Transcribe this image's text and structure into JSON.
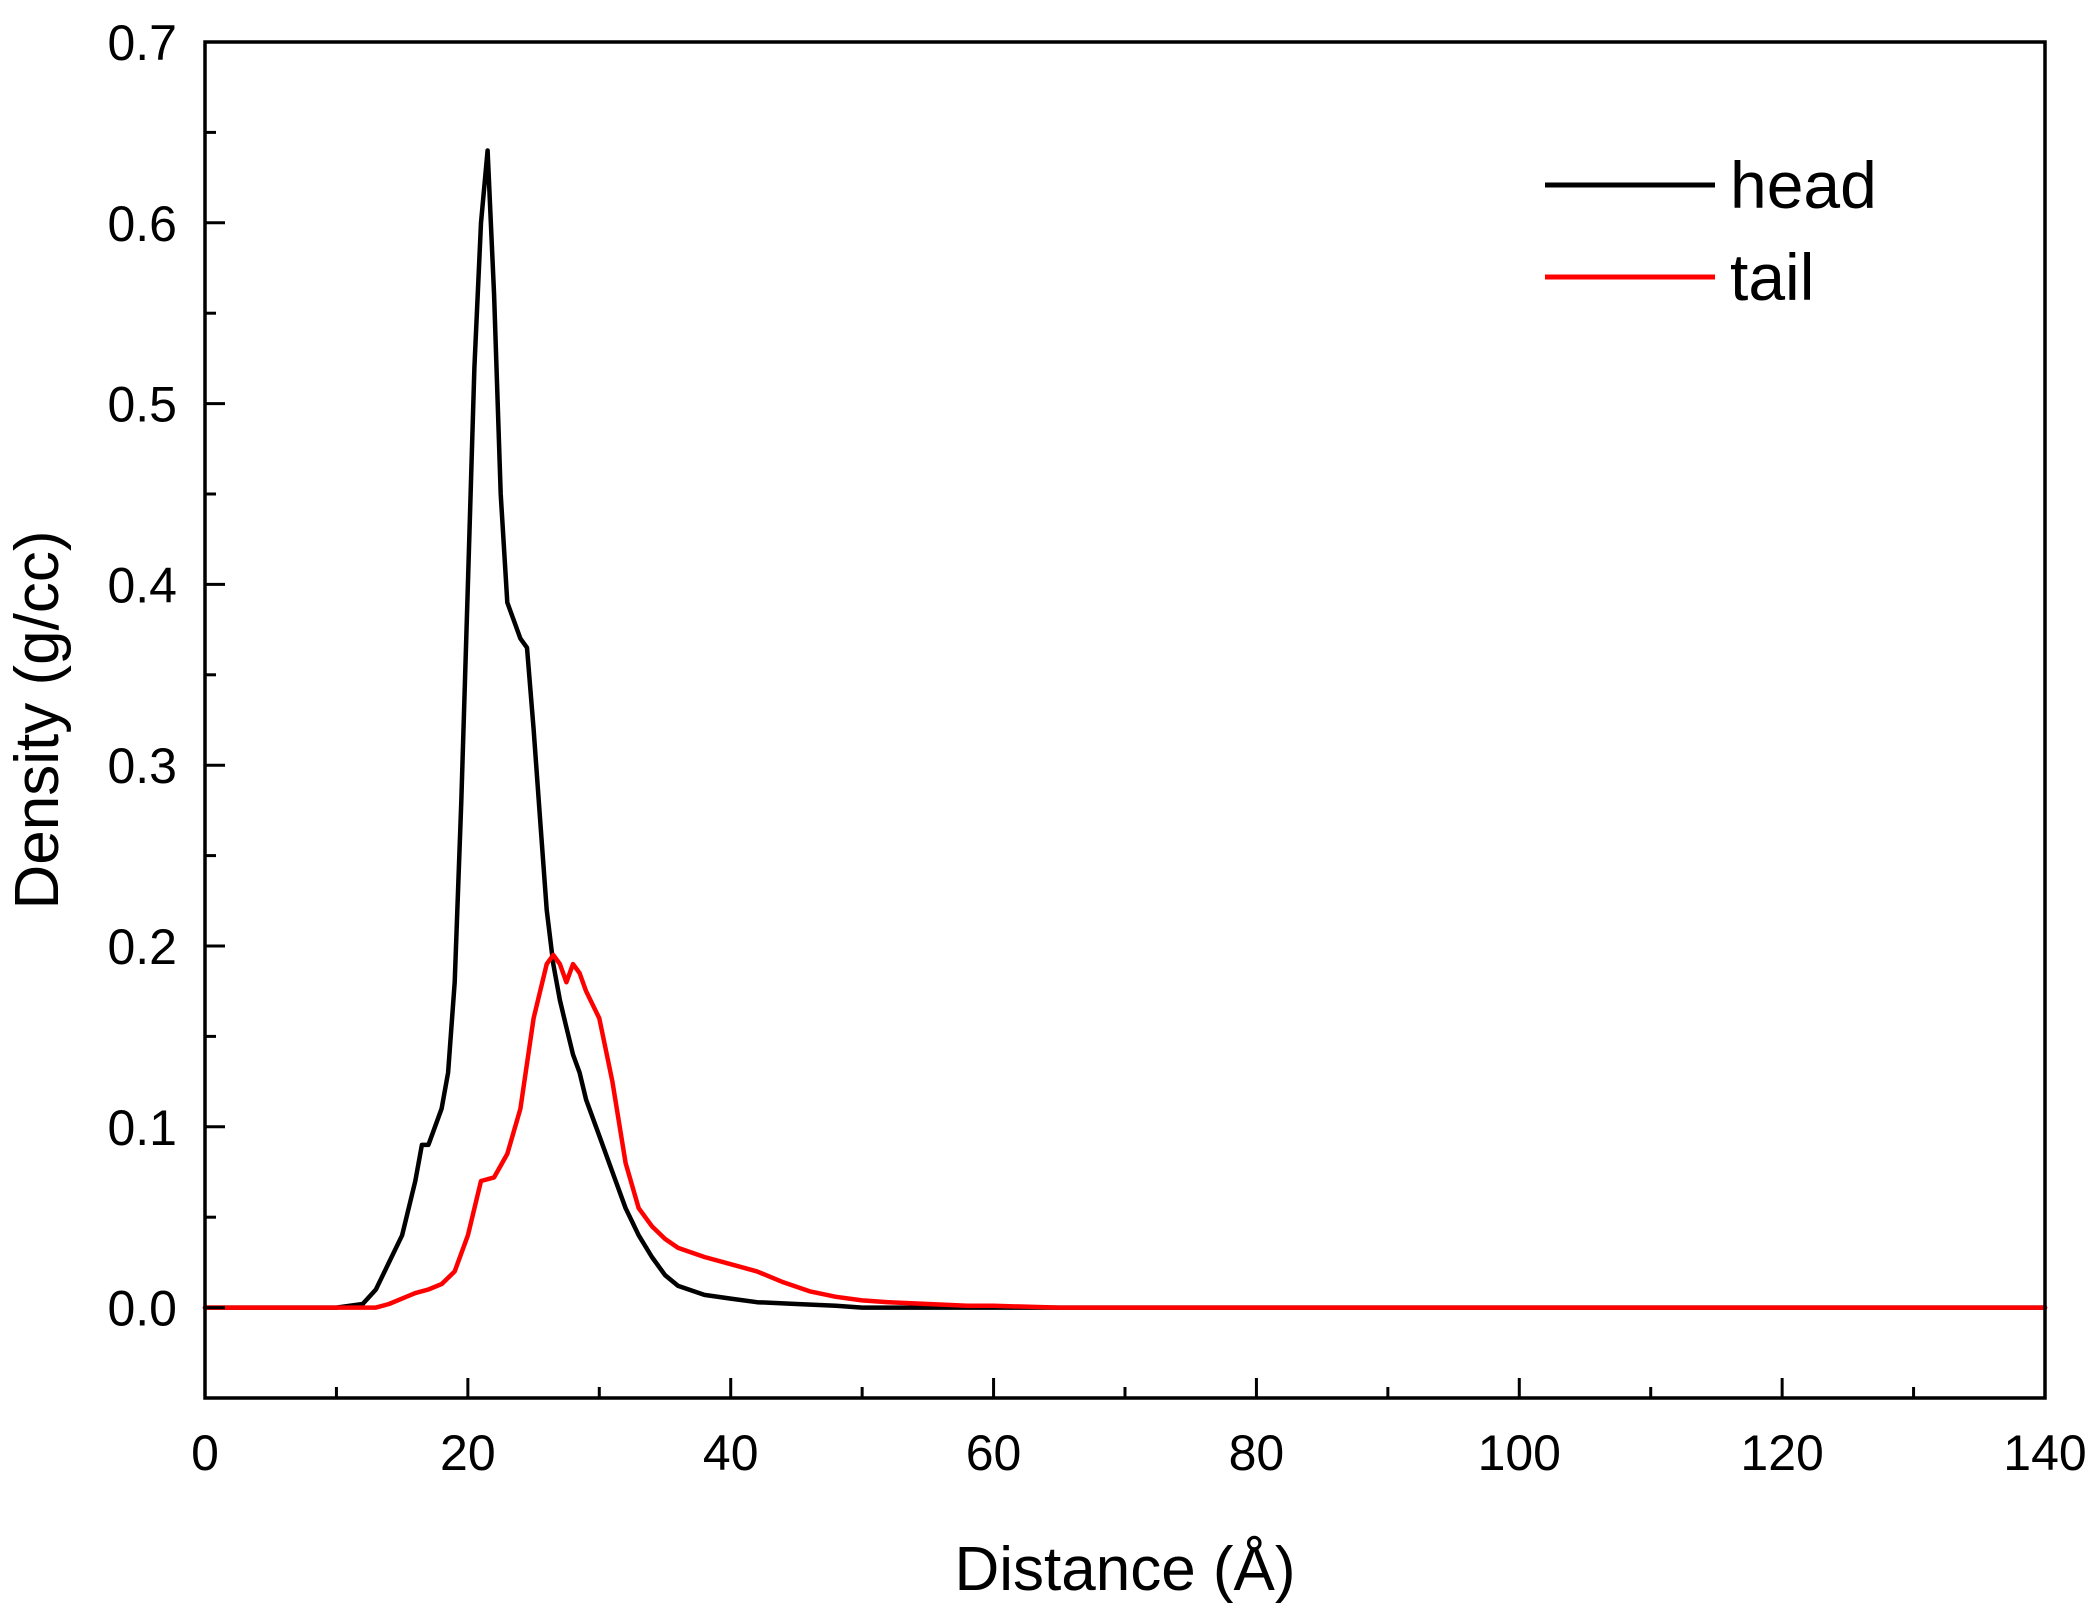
{
  "chart_data": {
    "type": "line",
    "title": "",
    "xlabel": "Distance (Å)",
    "ylabel": "Density (g/cc)",
    "xlim": [
      0,
      140
    ],
    "ylim": [
      -0.05,
      0.7
    ],
    "x_ticks": [
      0,
      20,
      40,
      60,
      80,
      100,
      120,
      140
    ],
    "x_tick_labels": [
      "0",
      "20",
      "40",
      "60",
      "80",
      "100",
      "120",
      "140"
    ],
    "y_ticks": [
      0.0,
      0.1,
      0.2,
      0.3,
      0.4,
      0.5,
      0.6,
      0.7
    ],
    "y_tick_labels": [
      "0.0",
      "0.1",
      "0.2",
      "0.3",
      "0.4",
      "0.5",
      "0.6",
      "0.7"
    ],
    "grid": false,
    "legend_position": "top-right",
    "series": [
      {
        "name": "head",
        "color": "#000000",
        "x": [
          0,
          10,
          12,
          13,
          14,
          15,
          16,
          16.5,
          17,
          17.5,
          18,
          18.5,
          19,
          19.5,
          20,
          20.5,
          21,
          21.5,
          22,
          22.5,
          23,
          23.5,
          24,
          24.5,
          25,
          25.5,
          26,
          26.5,
          27,
          27.5,
          28,
          28.5,
          29,
          30,
          31,
          32,
          33,
          34,
          35,
          36,
          38,
          40,
          42,
          45,
          48,
          50,
          140
        ],
        "y": [
          0.0,
          0.0,
          0.002,
          0.01,
          0.025,
          0.04,
          0.07,
          0.09,
          0.09,
          0.1,
          0.11,
          0.13,
          0.18,
          0.28,
          0.4,
          0.52,
          0.6,
          0.64,
          0.56,
          0.45,
          0.39,
          0.38,
          0.37,
          0.365,
          0.32,
          0.27,
          0.22,
          0.19,
          0.17,
          0.155,
          0.14,
          0.13,
          0.115,
          0.095,
          0.075,
          0.055,
          0.04,
          0.028,
          0.018,
          0.012,
          0.007,
          0.005,
          0.003,
          0.002,
          0.001,
          0.0,
          0.0
        ]
      },
      {
        "name": "tail",
        "color": "#ff0000",
        "x": [
          0,
          13,
          14,
          15,
          16,
          17,
          18,
          19,
          20,
          21,
          22,
          23,
          24,
          25,
          26,
          26.5,
          27,
          27.5,
          28,
          28.5,
          29,
          30,
          31,
          32,
          33,
          34,
          35,
          36,
          38,
          40,
          42,
          44,
          46,
          48,
          50,
          52,
          55,
          58,
          60,
          65,
          140
        ],
        "y": [
          0.0,
          0.0,
          0.002,
          0.005,
          0.008,
          0.01,
          0.013,
          0.02,
          0.04,
          0.07,
          0.072,
          0.085,
          0.11,
          0.16,
          0.19,
          0.195,
          0.19,
          0.18,
          0.19,
          0.185,
          0.175,
          0.16,
          0.125,
          0.08,
          0.055,
          0.045,
          0.038,
          0.033,
          0.028,
          0.024,
          0.02,
          0.014,
          0.009,
          0.006,
          0.004,
          0.003,
          0.002,
          0.001,
          0.001,
          0.0,
          0.0
        ]
      }
    ]
  }
}
